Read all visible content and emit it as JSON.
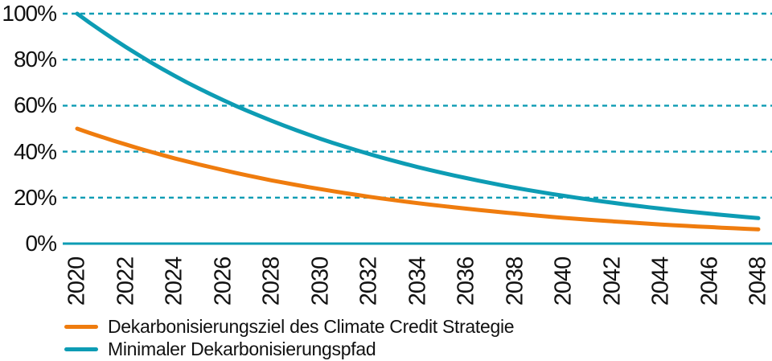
{
  "chart_data": {
    "type": "line",
    "categories": [
      "2020",
      "2022",
      "2024",
      "2026",
      "2028",
      "2030",
      "2032",
      "2034",
      "2036",
      "2038",
      "2040",
      "2042",
      "2044",
      "2046",
      "2048"
    ],
    "series": [
      {
        "name": "Dekarbonisierungsziel des Climate Credit Strategie",
        "color": "#ef7c0e",
        "values": [
          50,
          43.1,
          37.1,
          32,
          27.5,
          23.7,
          20.4,
          17.6,
          15.2,
          13.1,
          11.2,
          9.7,
          8.3,
          7.2,
          6.2
        ]
      },
      {
        "name": "Minimaler Dekarbonisierungspfad",
        "color": "#0d9cb4",
        "values": [
          100,
          85.5,
          73,
          62.4,
          53.4,
          45.6,
          39,
          33.3,
          28.5,
          24.3,
          20.8,
          17.8,
          15.2,
          13,
          11.1
        ]
      }
    ],
    "yticks": [
      {
        "label": "0%",
        "value": 0
      },
      {
        "label": "20%",
        "value": 20
      },
      {
        "label": "40%",
        "value": 40
      },
      {
        "label": "60%",
        "value": 60
      },
      {
        "label": "80%",
        "value": 80
      },
      {
        "label": "100%",
        "value": 100
      }
    ],
    "ylim": [
      0,
      100
    ],
    "xlabel": "",
    "ylabel": "",
    "grid": "horizontal-dashed",
    "axis_color": "#0d9cb4",
    "text_color": "#111111",
    "legend_position": "bottom-left"
  }
}
